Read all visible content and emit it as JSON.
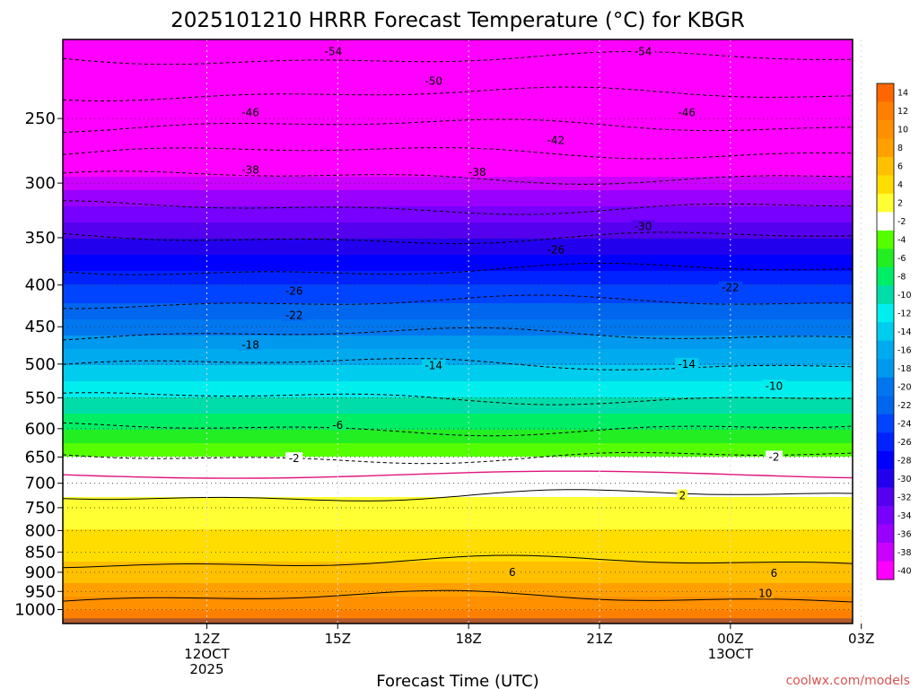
{
  "chart_data": {
    "type": "heatmap",
    "title": "2025101210 HRRR Forecast Temperature (°C) for KBGR",
    "xlabel": "Forecast Time (UTC)",
    "ylabel": "",
    "credit": "coolwx.com/models",
    "y_axis": {
      "scale": "log-pressure",
      "ticks": [
        250,
        300,
        350,
        400,
        450,
        500,
        550,
        600,
        650,
        700,
        750,
        800,
        850,
        900,
        950,
        1000
      ],
      "tick_labels": [
        "250",
        "300",
        "350",
        "400",
        "450",
        "500",
        "550",
        "600",
        "650",
        "700",
        "750",
        "800",
        "850",
        "900",
        "950",
        "1000"
      ],
      "range_hpa": [
        200,
        1040
      ]
    },
    "x_axis": {
      "range_hours": [
        -3.3,
        14.8
      ],
      "ticks": [
        {
          "hour": 0,
          "lines": [
            "12Z",
            "12OCT",
            "2025"
          ]
        },
        {
          "hour": 3,
          "lines": [
            "15Z"
          ]
        },
        {
          "hour": 6,
          "lines": [
            "18Z"
          ]
        },
        {
          "hour": 9,
          "lines": [
            "21Z"
          ]
        },
        {
          "hour": 12,
          "lines": [
            "00Z",
            "13OCT"
          ]
        },
        {
          "hour": 15,
          "lines": [
            "03Z"
          ]
        }
      ]
    },
    "grid": true,
    "colorbar": {
      "placement": "right",
      "levels": [
        14,
        12,
        10,
        8,
        6,
        4,
        2,
        -2,
        -4,
        -6,
        -8,
        -10,
        -12,
        -14,
        -16,
        -18,
        -20,
        -22,
        -24,
        -26,
        -28,
        -30,
        -32,
        -34,
        -36,
        -38,
        -40
      ],
      "colors": [
        "#ff6600",
        "#ff8000",
        "#ff9000",
        "#ffa000",
        "#ffc000",
        "#ffdd00",
        "#ffff33",
        "#ffffff",
        "#55ff00",
        "#22ee22",
        "#00ee66",
        "#00ddaa",
        "#00eeee",
        "#00ccee",
        "#00aaee",
        "#0099ee",
        "#0077ee",
        "#0066ee",
        "#0044ff",
        "#0022ff",
        "#0000ff",
        "#2200ee",
        "#5500ee",
        "#7700ff",
        "#9900ff",
        "#cc00ff",
        "#ff00ff"
      ]
    },
    "levels_hpa": [
      200,
      250,
      300,
      350,
      400,
      450,
      500,
      550,
      600,
      650,
      700,
      750,
      800,
      850,
      900,
      950,
      1000
    ],
    "temperature_profile_c": [
      -56,
      -47,
      -37,
      -30,
      -24,
      -19,
      -14,
      -10,
      -6,
      -2,
      1,
      3,
      4,
      5,
      7,
      9,
      12
    ],
    "contour_labels": [
      {
        "text": "-54",
        "hour": 2.9,
        "hpa": 207
      },
      {
        "text": "-54",
        "hour": 10.0,
        "hpa": 207
      },
      {
        "text": "-50",
        "hour": 5.2,
        "hpa": 225
      },
      {
        "text": "-46",
        "hour": 1.0,
        "hpa": 246
      },
      {
        "text": "-46",
        "hour": 11.0,
        "hpa": 246
      },
      {
        "text": "-42",
        "hour": 8.0,
        "hpa": 266
      },
      {
        "text": "-38",
        "hour": 1.0,
        "hpa": 289
      },
      {
        "text": "-38",
        "hour": 6.2,
        "hpa": 291
      },
      {
        "text": "-30",
        "hour": 10.0,
        "hpa": 339
      },
      {
        "text": "-26",
        "hour": 8.0,
        "hpa": 362
      },
      {
        "text": "-26",
        "hour": 2.0,
        "hpa": 407
      },
      {
        "text": "-22",
        "hour": 2.0,
        "hpa": 436
      },
      {
        "text": "-22",
        "hour": 12.0,
        "hpa": 403
      },
      {
        "text": "-18",
        "hour": 1.0,
        "hpa": 474
      },
      {
        "text": "-14",
        "hour": 5.2,
        "hpa": 502
      },
      {
        "text": "-14",
        "hour": 11.0,
        "hpa": 500
      },
      {
        "text": "-10",
        "hour": 13.0,
        "hpa": 532
      },
      {
        "text": "-6",
        "hour": 3.0,
        "hpa": 594
      },
      {
        "text": "-2",
        "hour": 2.0,
        "hpa": 653
      },
      {
        "text": "-2",
        "hour": 13.0,
        "hpa": 650
      },
      {
        "text": "2",
        "hour": 10.9,
        "hpa": 725
      },
      {
        "text": "6",
        "hour": 7.0,
        "hpa": 900
      },
      {
        "text": "6",
        "hour": 13.0,
        "hpa": 902
      },
      {
        "text": "10",
        "hour": 12.8,
        "hpa": 955
      }
    ]
  }
}
